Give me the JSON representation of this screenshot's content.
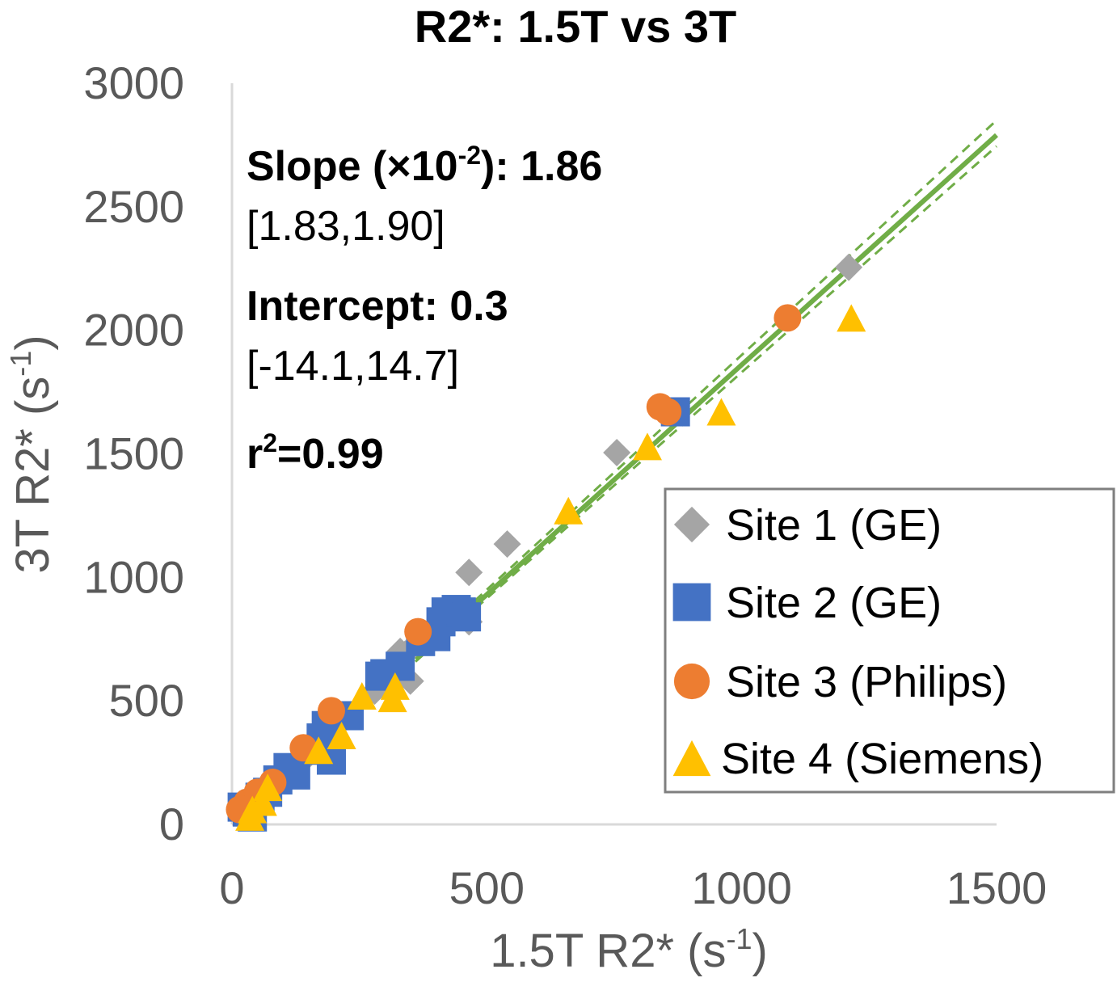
{
  "chart_data": {
    "type": "scatter",
    "title": "R2*: 1.5T vs 3T",
    "xlabel": "1.5T R2* (s",
    "xlabel_sup": "-1",
    "xlabel_close": ")",
    "ylabel": "3T R2* (s",
    "ylabel_sup": "-1",
    "ylabel_close": ")",
    "xlim": [
      0,
      1500
    ],
    "ylim": [
      0,
      3000
    ],
    "xticks": [
      0,
      500,
      1000,
      1500
    ],
    "yticks": [
      0,
      500,
      1000,
      1500,
      2000,
      2500,
      3000
    ],
    "stats": {
      "slope_label": "Slope (×10",
      "slope_sup": "-2",
      "slope_label_close": "): 1.86",
      "slope_ci": "[1.83,1.90]",
      "intercept_label": "Intercept: 0.3",
      "intercept_ci": "[-14.1,14.7]",
      "r2_base": "r",
      "r2_sup": "2",
      "r2_value": "=0.99"
    },
    "fit": {
      "slope": 1.86,
      "intercept": 0.3,
      "color": "#70ad47",
      "x_range": [
        360,
        1500
      ],
      "ci_upper": {
        "slope": 1.9,
        "intercept": 0
      },
      "ci_lower": {
        "slope": 1.83,
        "intercept": 0
      }
    },
    "series": [
      {
        "name": "Site 1 (GE)",
        "marker": "diamond",
        "color": "#a5a5a5",
        "points": [
          [
            40,
            60
          ],
          [
            60,
            100
          ],
          [
            85,
            150
          ],
          [
            100,
            190
          ],
          [
            110,
            220
          ],
          [
            150,
            280
          ],
          [
            165,
            320
          ],
          [
            185,
            370
          ],
          [
            200,
            400
          ],
          [
            280,
            540
          ],
          [
            310,
            610
          ],
          [
            330,
            700
          ],
          [
            340,
            690
          ],
          [
            350,
            580
          ],
          [
            465,
            820
          ],
          [
            465,
            1020
          ],
          [
            540,
            1135
          ],
          [
            755,
            1505
          ],
          [
            1210,
            2255
          ]
        ]
      },
      {
        "name": "Site 2 (GE)",
        "marker": "square",
        "color": "#4472c4",
        "points": [
          [
            20,
            70
          ],
          [
            30,
            50
          ],
          [
            40,
            30
          ],
          [
            55,
            110
          ],
          [
            70,
            130
          ],
          [
            90,
            180
          ],
          [
            110,
            230
          ],
          [
            125,
            200
          ],
          [
            160,
            300
          ],
          [
            175,
            350
          ],
          [
            185,
            400
          ],
          [
            195,
            260
          ],
          [
            230,
            440
          ],
          [
            290,
            600
          ],
          [
            300,
            610
          ],
          [
            330,
            640
          ],
          [
            370,
            740
          ],
          [
            400,
            760
          ],
          [
            410,
            820
          ],
          [
            420,
            860
          ],
          [
            440,
            870
          ],
          [
            450,
            860
          ],
          [
            460,
            840
          ],
          [
            870,
            1670
          ]
        ]
      },
      {
        "name": "Site 3 (Philips)",
        "marker": "circle",
        "color": "#ed7d31",
        "points": [
          [
            15,
            60
          ],
          [
            30,
            90
          ],
          [
            50,
            130
          ],
          [
            80,
            170
          ],
          [
            140,
            310
          ],
          [
            195,
            460
          ],
          [
            365,
            780
          ],
          [
            840,
            1690
          ],
          [
            855,
            1670
          ],
          [
            1090,
            2050
          ]
        ]
      },
      {
        "name": "Site 4 (Siemens)",
        "marker": "triangle",
        "color": "#ffc000",
        "points": [
          [
            35,
            30
          ],
          [
            40,
            60
          ],
          [
            60,
            90
          ],
          [
            70,
            150
          ],
          [
            170,
            300
          ],
          [
            215,
            360
          ],
          [
            255,
            520
          ],
          [
            315,
            510
          ],
          [
            320,
            560
          ],
          [
            660,
            1270
          ],
          [
            815,
            1530
          ],
          [
            960,
            1670
          ],
          [
            1215,
            2050
          ]
        ]
      }
    ],
    "legend_position": "bottom-right"
  }
}
